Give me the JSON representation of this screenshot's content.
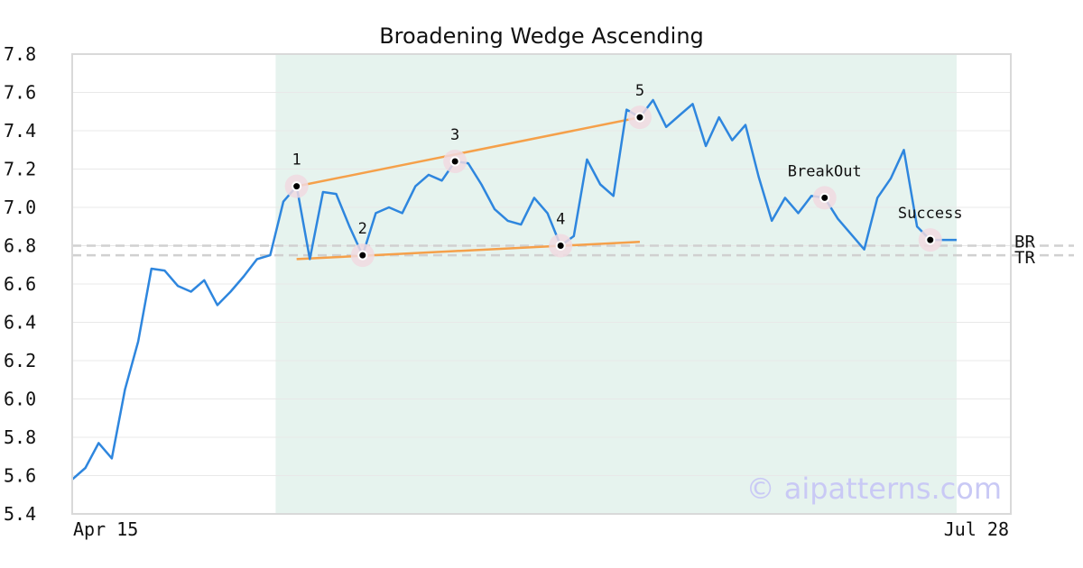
{
  "chart_data": {
    "type": "line",
    "title": "Broadening Wedge Ascending",
    "xlabel": "",
    "ylabel": "",
    "x_ticks": [
      "Apr 15",
      "Jul 28"
    ],
    "ylim": [
      5.4,
      7.8
    ],
    "y_ticks": [
      "5.4",
      "5.6",
      "5.8",
      "6.0",
      "6.2",
      "6.4",
      "6.6",
      "6.8",
      "7.0",
      "7.2",
      "7.4",
      "7.6",
      "7.8"
    ],
    "grid": true,
    "colors": {
      "line": "#2e86de",
      "trendline": "#f5a04a",
      "highlight": "#e6f3ee",
      "marker_halo": "#f0d9e0",
      "level_line": "#d0d0d0"
    },
    "series": [
      {
        "values": [
          5.58,
          5.64,
          5.77,
          5.69,
          6.05,
          6.3,
          6.68,
          6.67,
          6.59,
          6.56,
          6.62,
          6.49,
          6.56,
          6.64,
          6.73,
          6.75,
          7.03,
          7.11,
          6.73,
          7.08,
          7.07,
          6.9,
          6.75,
          6.97,
          7.0,
          6.97,
          7.11,
          7.17,
          7.14,
          7.24,
          7.23,
          7.12,
          6.99,
          6.93,
          6.91,
          7.05,
          6.97,
          6.8,
          6.85,
          7.25,
          7.12,
          7.06,
          7.51,
          7.47,
          7.56,
          7.42,
          7.48,
          7.54,
          7.32,
          7.47,
          7.35,
          7.43,
          7.16,
          6.93,
          7.05,
          6.97,
          7.06,
          7.05,
          6.94,
          6.86,
          6.78,
          7.05,
          7.15,
          7.3,
          6.9,
          6.83,
          6.83,
          6.83
        ]
      }
    ],
    "highlight_range": [
      15,
      67
    ],
    "trendlines": [
      {
        "from": [
          17,
          7.11
        ],
        "to": [
          43,
          7.47
        ]
      },
      {
        "from": [
          17,
          6.73
        ],
        "to": [
          43,
          6.82
        ]
      }
    ],
    "points": [
      {
        "label": "1",
        "x": 17,
        "y": 7.11
      },
      {
        "label": "2",
        "x": 22,
        "y": 6.75
      },
      {
        "label": "3",
        "x": 29,
        "y": 7.24
      },
      {
        "label": "4",
        "x": 37,
        "y": 6.8
      },
      {
        "label": "5",
        "x": 43,
        "y": 7.47
      },
      {
        "label": "BreakOut",
        "x": 57,
        "y": 7.05
      },
      {
        "label": "Success",
        "x": 65,
        "y": 6.83
      }
    ],
    "levels": [
      {
        "label": "BR",
        "y": 6.8
      },
      {
        "label": "TR",
        "y": 6.75
      }
    ],
    "watermark": "© aipatterns.com"
  }
}
